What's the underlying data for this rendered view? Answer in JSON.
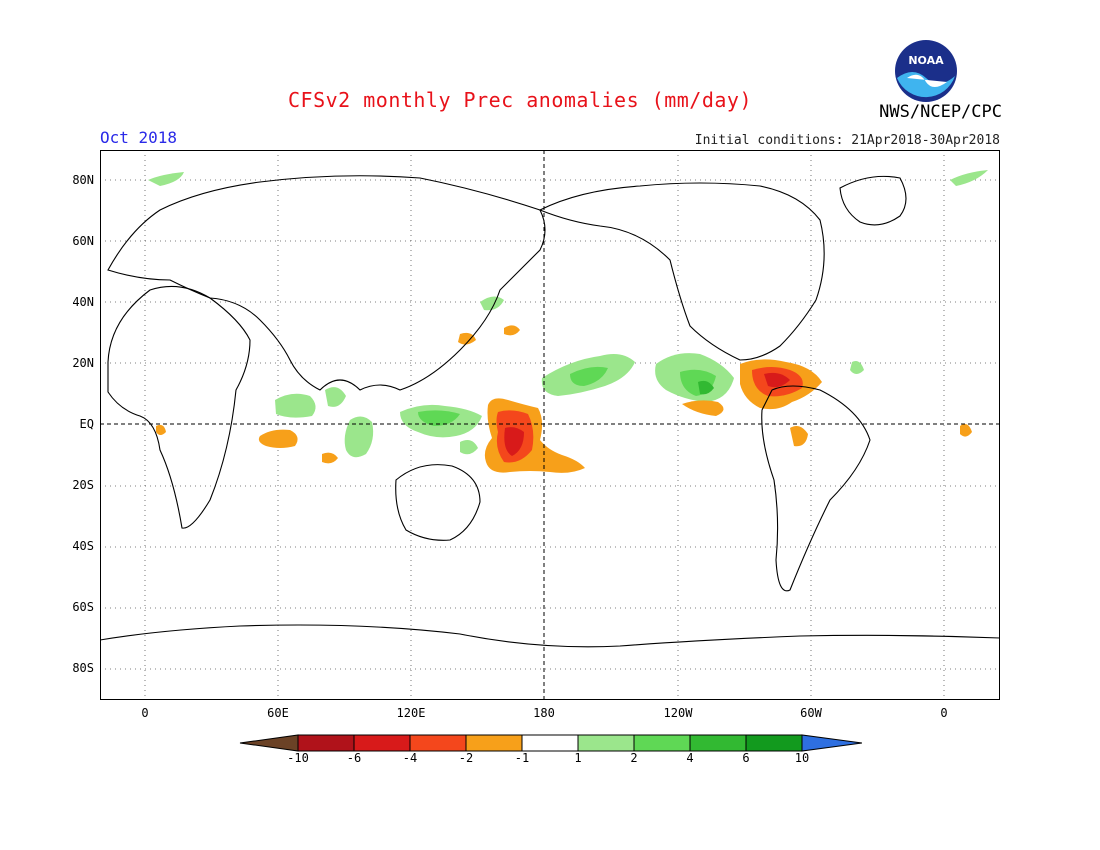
{
  "header": {
    "title": "CFSv2 monthly Prec anomalies (mm/day)",
    "org": "NWS/NCEP/CPC",
    "month": "Oct 2018",
    "initial_conditions": "Initial conditions: 21Apr2018-30Apr2018",
    "logo_text": "NOAA"
  },
  "axes": {
    "lat_labels": [
      "80N",
      "60N",
      "40N",
      "20N",
      "EQ",
      "20S",
      "40S",
      "60S",
      "80S"
    ],
    "lon_labels": [
      "0",
      "60E",
      "120E",
      "180",
      "120W",
      "60W",
      "0"
    ]
  },
  "colorbar": {
    "tick_labels": [
      "-10",
      "-6",
      "-4",
      "-2",
      "-1",
      "1",
      "2",
      "4",
      "6",
      "10"
    ],
    "colors": {
      "lt_neg10": "#6b4226",
      "neg10_neg6": "#b0121a",
      "neg6_neg4": "#d81a1a",
      "neg4_neg2": "#f4471c",
      "neg2_neg1": "#f7a01a",
      "neg1_1": "#ffffff",
      "1_2": "#9be68c",
      "2_4": "#5fd855",
      "4_6": "#32b932",
      "6_10": "#129a1e",
      "gt_10": "#2e6fe0"
    }
  }
}
